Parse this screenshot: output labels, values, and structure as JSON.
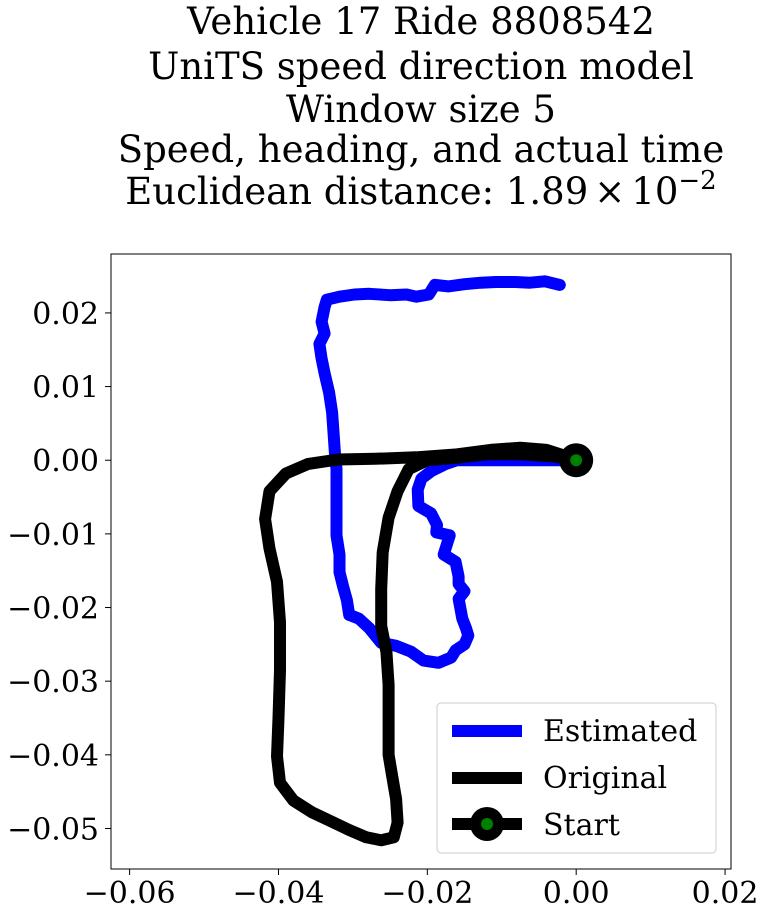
{
  "chart_data": {
    "type": "line",
    "title_lines": [
      "Vehicle 17 Ride 8808542",
      "UniTS speed direction model",
      "Window size 5",
      "Speed, heading, and actual time"
    ],
    "title_distance_prefix": "Euclidean distance: ",
    "title_distance_mantissa": "1.89",
    "title_distance_times": "×",
    "title_distance_base": "10",
    "title_distance_exponent": "−2",
    "xlabel": "",
    "ylabel": "",
    "xlim": [
      -0.0625,
      0.0208
    ],
    "ylim": [
      -0.0555,
      0.028
    ],
    "x_ticks": [
      {
        "value": -0.06,
        "label": "−0.06"
      },
      {
        "value": -0.04,
        "label": "−0.04"
      },
      {
        "value": -0.02,
        "label": "−0.02"
      },
      {
        "value": 0.0,
        "label": "0.00"
      },
      {
        "value": 0.02,
        "label": "0.02"
      }
    ],
    "y_ticks": [
      {
        "value": 0.02,
        "label": "0.02"
      },
      {
        "value": 0.01,
        "label": "0.01"
      },
      {
        "value": 0.0,
        "label": "0.00"
      },
      {
        "value": -0.01,
        "label": "−0.01"
      },
      {
        "value": -0.02,
        "label": "−0.02"
      },
      {
        "value": -0.03,
        "label": "−0.03"
      },
      {
        "value": -0.04,
        "label": "−0.04"
      },
      {
        "value": -0.05,
        "label": "−0.05"
      }
    ],
    "grid": false,
    "legend_position": "lower-right",
    "series": [
      {
        "name": "Estimated",
        "color": "#0000ff",
        "points": [
          [
            0.0,
            0.0
          ],
          [
            -0.004,
            0.0
          ],
          [
            -0.008,
            0.0
          ],
          [
            -0.012,
            0.0
          ],
          [
            -0.016,
            0.0
          ],
          [
            -0.0175,
            -0.0005
          ],
          [
            -0.0195,
            -0.0015
          ],
          [
            -0.0208,
            -0.0025
          ],
          [
            -0.0213,
            -0.004
          ],
          [
            -0.0212,
            -0.0062
          ],
          [
            -0.0195,
            -0.0072
          ],
          [
            -0.0187,
            -0.0088
          ],
          [
            -0.0188,
            -0.0098
          ],
          [
            -0.017,
            -0.0102
          ],
          [
            -0.0178,
            -0.0128
          ],
          [
            -0.0162,
            -0.0138
          ],
          [
            -0.0158,
            -0.0158
          ],
          [
            -0.0158,
            -0.0168
          ],
          [
            -0.015,
            -0.0178
          ],
          [
            -0.0158,
            -0.0188
          ],
          [
            -0.0153,
            -0.0215
          ],
          [
            -0.0148,
            -0.0228
          ],
          [
            -0.0145,
            -0.0238
          ],
          [
            -0.015,
            -0.025
          ],
          [
            -0.0162,
            -0.0258
          ],
          [
            -0.0168,
            -0.0268
          ],
          [
            -0.0185,
            -0.0275
          ],
          [
            -0.0205,
            -0.0272
          ],
          [
            -0.0222,
            -0.026
          ],
          [
            -0.0242,
            -0.0252
          ],
          [
            -0.0262,
            -0.0248
          ],
          [
            -0.0278,
            -0.0228
          ],
          [
            -0.0292,
            -0.0215
          ],
          [
            -0.0305,
            -0.021
          ],
          [
            -0.0308,
            -0.019
          ],
          [
            -0.0313,
            -0.0172
          ],
          [
            -0.0318,
            -0.0152
          ],
          [
            -0.0318,
            -0.0128
          ],
          [
            -0.0322,
            -0.0102
          ],
          [
            -0.0322,
            -0.0072
          ],
          [
            -0.0322,
            -0.0042
          ],
          [
            -0.0322,
            -0.0012
          ],
          [
            -0.0324,
            0.0008
          ],
          [
            -0.0326,
            0.0038
          ],
          [
            -0.0328,
            0.0065
          ],
          [
            -0.0332,
            0.0092
          ],
          [
            -0.0338,
            0.0118
          ],
          [
            -0.0342,
            0.0138
          ],
          [
            -0.0345,
            0.0158
          ],
          [
            -0.0338,
            0.0172
          ],
          [
            -0.0342,
            0.0188
          ],
          [
            -0.0338,
            0.0208
          ],
          [
            -0.0335,
            0.0218
          ],
          [
            -0.0318,
            0.0222
          ],
          [
            -0.0298,
            0.0225
          ],
          [
            -0.0278,
            0.0226
          ],
          [
            -0.025,
            0.0224
          ],
          [
            -0.0228,
            0.0225
          ],
          [
            -0.0215,
            0.0222
          ],
          [
            -0.0198,
            0.0225
          ],
          [
            -0.019,
            0.0238
          ],
          [
            -0.0172,
            0.0236
          ],
          [
            -0.015,
            0.0239
          ],
          [
            -0.0128,
            0.0241
          ],
          [
            -0.0108,
            0.0242
          ],
          [
            -0.0082,
            0.0242
          ],
          [
            -0.0062,
            0.0241
          ],
          [
            -0.0042,
            0.0243
          ],
          [
            -0.0022,
            0.0238
          ]
        ]
      },
      {
        "name": "Original",
        "color": "#000000",
        "points": [
          [
            0.0,
            0.0
          ],
          [
            -0.003,
            0.0005
          ],
          [
            -0.0075,
            0.0008
          ],
          [
            -0.012,
            0.0008
          ],
          [
            -0.0165,
            0.0003
          ],
          [
            -0.02,
            0.0
          ],
          [
            -0.0225,
            -0.0012
          ],
          [
            -0.024,
            -0.0042
          ],
          [
            -0.0252,
            -0.0078
          ],
          [
            -0.026,
            -0.0125
          ],
          [
            -0.0262,
            -0.0175
          ],
          [
            -0.0262,
            -0.0225
          ],
          [
            -0.0255,
            -0.026
          ],
          [
            -0.0252,
            -0.0305
          ],
          [
            -0.0252,
            -0.0355
          ],
          [
            -0.0252,
            -0.04
          ],
          [
            -0.0247,
            -0.043
          ],
          [
            -0.0242,
            -0.046
          ],
          [
            -0.024,
            -0.0492
          ],
          [
            -0.0245,
            -0.0512
          ],
          [
            -0.0262,
            -0.0516
          ],
          [
            -0.0282,
            -0.0512
          ],
          [
            -0.0305,
            -0.0502
          ],
          [
            -0.033,
            -0.049
          ],
          [
            -0.0355,
            -0.0478
          ],
          [
            -0.038,
            -0.0462
          ],
          [
            -0.0398,
            -0.0438
          ],
          [
            -0.0402,
            -0.0402
          ],
          [
            -0.04,
            -0.035
          ],
          [
            -0.0398,
            -0.0285
          ],
          [
            -0.0398,
            -0.022
          ],
          [
            -0.0402,
            -0.0165
          ],
          [
            -0.0412,
            -0.012
          ],
          [
            -0.0418,
            -0.008
          ],
          [
            -0.0412,
            -0.0042
          ],
          [
            -0.039,
            -0.0018
          ],
          [
            -0.036,
            -0.0005
          ],
          [
            -0.032,
            0.0001
          ],
          [
            -0.027,
            0.0002
          ],
          [
            -0.0215,
            0.0004
          ],
          [
            -0.016,
            0.0008
          ],
          [
            -0.0115,
            0.0014
          ],
          [
            -0.0075,
            0.0017
          ],
          [
            -0.004,
            0.0014
          ],
          [
            -0.0015,
            0.0006
          ],
          [
            0.0,
            0.0
          ]
        ]
      }
    ],
    "start_marker": {
      "name": "Start",
      "point": [
        0.0,
        0.0
      ],
      "outer_color": "#000000",
      "inner_color": "#008000"
    }
  }
}
